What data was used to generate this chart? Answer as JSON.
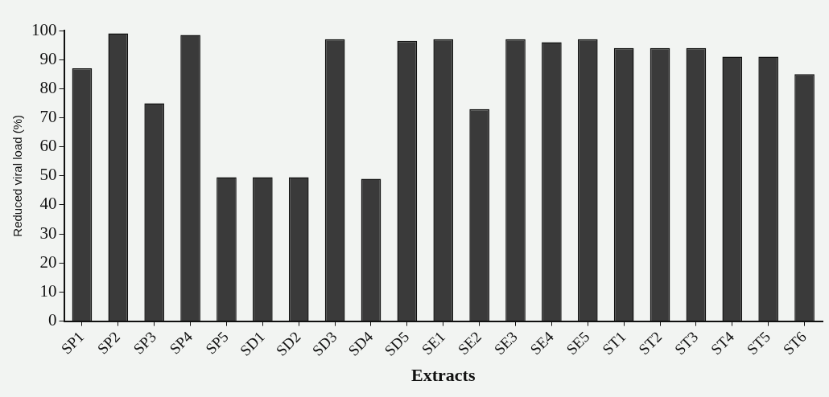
{
  "chart_data": {
    "type": "bar",
    "xlabel": "Extracts",
    "ylabel": "Reduced viral load (%)",
    "categories": [
      "SP1",
      "SP2",
      "SP3",
      "SP4",
      "SP5",
      "SD1",
      "SD2",
      "SD3",
      "SD4",
      "SD5",
      "SE1",
      "SE2",
      "SE3",
      "SE4",
      "SE5",
      "ST1",
      "ST2",
      "ST3",
      "ST4",
      "ST5",
      "ST6"
    ],
    "values": [
      87,
      99,
      75,
      98.5,
      49.5,
      49.5,
      49.5,
      97,
      49,
      96.5,
      97,
      73,
      97,
      96,
      97,
      94,
      94,
      94,
      91,
      91,
      85
    ],
    "color": "#3a3a3a",
    "ylim": [
      0,
      100
    ],
    "yticks": [
      0,
      10,
      20,
      30,
      40,
      50,
      60,
      70,
      80,
      90,
      100
    ],
    "grid": false,
    "legend": false
  }
}
